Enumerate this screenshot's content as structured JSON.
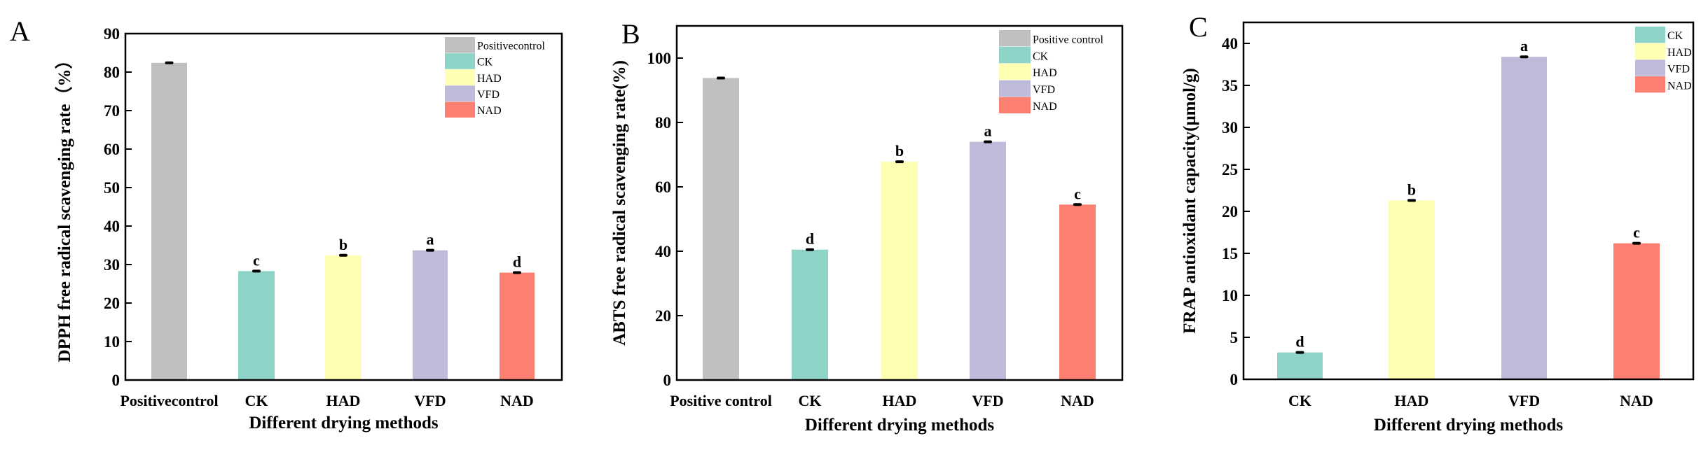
{
  "chart_data": [
    {
      "panel_label": "A",
      "type": "bar",
      "xlabel": "Different drying methods",
      "ylabel": "DPPH free radical scavenging rate（%）",
      "categories": [
        "Positivecontrol",
        "CK",
        "HAD",
        "VFD",
        "NAD"
      ],
      "values": [
        82.4,
        28.3,
        32.4,
        33.7,
        27.9
      ],
      "significance": [
        "",
        "c",
        "b",
        "a",
        "d"
      ],
      "colors": [
        "#c0c0c0",
        "#8dd3c7",
        "#ffffb3",
        "#bebada",
        "#fb8072"
      ],
      "legend": [
        "Positivecontrol",
        "CK",
        "HAD",
        "VFD",
        "NAD"
      ],
      "legend_placement": "top-right",
      "ylim": [
        0,
        90
      ],
      "yticks": [
        0,
        10,
        20,
        30,
        40,
        50,
        60,
        70,
        80,
        90
      ],
      "grid": false
    },
    {
      "panel_label": "B",
      "type": "bar",
      "xlabel": "Different drying methods",
      "ylabel": "ABTS free radical scavenging rate(%)",
      "categories": [
        "Positive control",
        "CK",
        "HAD",
        "VFD",
        "NAD"
      ],
      "values": [
        93.8,
        40.5,
        67.8,
        74.0,
        54.5
      ],
      "significance": [
        "",
        "d",
        "b",
        "a",
        "c"
      ],
      "colors": [
        "#c0c0c0",
        "#8dd3c7",
        "#ffffb3",
        "#bebada",
        "#fb8072"
      ],
      "legend": [
        "Positive control",
        "CK",
        "HAD",
        "VFD",
        "NAD"
      ],
      "legend_placement": "top-right",
      "ylim": [
        0,
        110
      ],
      "yticks": [
        0,
        20,
        40,
        60,
        80,
        100
      ],
      "grid": false
    },
    {
      "panel_label": "C",
      "type": "bar",
      "xlabel": "Different drying methods",
      "ylabel": "FRAP  antioxidant capacity(μmol/g)",
      "categories": [
        "CK",
        "HAD",
        "VFD",
        "NAD"
      ],
      "values": [
        3.2,
        21.3,
        38.4,
        16.2
      ],
      "significance": [
        "d",
        "b",
        "a",
        "c"
      ],
      "colors": [
        "#8dd3c7",
        "#ffffb3",
        "#bebada",
        "#fb8072"
      ],
      "legend": [
        "CK",
        "HAD",
        "VFD",
        "NAD"
      ],
      "legend_placement": "top-right",
      "ylim": [
        0,
        42.5
      ],
      "yticks": [
        0,
        5,
        10,
        15,
        20,
        25,
        30,
        35,
        40
      ],
      "grid": false
    }
  ]
}
